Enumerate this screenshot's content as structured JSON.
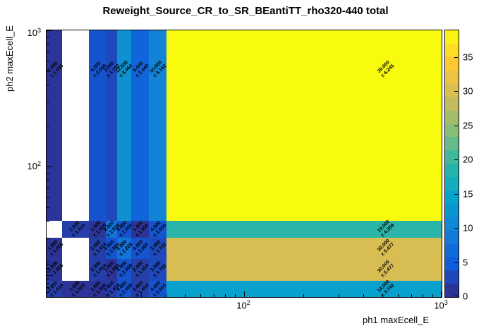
{
  "chart_data": {
    "type": "heatmap",
    "title": "Reweight_Source_CR_to_SR_BEantiTT_rho320-440 total",
    "xlabel": "ph1 maxEcell_E",
    "ylabel": "ph2 maxEcell_E",
    "xscale": "log",
    "yscale": "log",
    "xlim": [
      10,
      1000
    ],
    "ylim": [
      11,
      1000
    ],
    "zlim": [
      0,
      39
    ],
    "grid": false,
    "x_ticks": [
      {
        "value": 100,
        "base": "10",
        "exp": "2"
      },
      {
        "value": 1000,
        "base": "10",
        "exp": "3"
      }
    ],
    "y_ticks": [
      {
        "value": 100,
        "base": "10",
        "exp": "2"
      },
      {
        "value": 1000,
        "base": "10",
        "exp": "3"
      }
    ],
    "colorbar_ticks": [
      0,
      5,
      10,
      15,
      20,
      25,
      30,
      35
    ],
    "palette": [
      [
        0,
        "#352a87"
      ],
      [
        0.125,
        "#0f5cdd"
      ],
      [
        0.25,
        "#1481d6"
      ],
      [
        0.375,
        "#06a4ca"
      ],
      [
        0.5,
        "#2eb7a4"
      ],
      [
        0.625,
        "#87bf77"
      ],
      [
        0.75,
        "#d1bb59"
      ],
      [
        0.875,
        "#fec832"
      ],
      [
        1,
        "#f9fb0e"
      ]
    ],
    "cells": [
      {
        "x1": 10,
        "x2": 12,
        "y1": 40,
        "y2": 1000,
        "v": 1,
        "t": "1.000",
        "e": "± 1.000"
      },
      {
        "x1": 16.4,
        "x2": 20,
        "y1": 40,
        "y2": 1000,
        "v": 4,
        "t": "4.000",
        "e": "± 2.000"
      },
      {
        "x1": 20,
        "x2": 22.7,
        "y1": 40,
        "y2": 1000,
        "v": 3,
        "t": "3.000",
        "e": "± 1.732"
      },
      {
        "x1": 22.7,
        "x2": 26.8,
        "y1": 40,
        "y2": 1000,
        "v": 12,
        "t": "12.000",
        "e": "± 3.464"
      },
      {
        "x1": 26.8,
        "x2": 33,
        "y1": 40,
        "y2": 1000,
        "v": 6,
        "t": "6.000",
        "e": "± 2.449"
      },
      {
        "x1": 33,
        "x2": 40.5,
        "y1": 40,
        "y2": 1000,
        "v": 10,
        "t": "10.000",
        "e": "± 3.162"
      },
      {
        "x1": 40.5,
        "x2": 1000,
        "y1": 40,
        "y2": 1000,
        "v": 39,
        "t": "39.000",
        "e": "± 6.245"
      },
      {
        "x1": 40.5,
        "x2": 1000,
        "y1": 30,
        "y2": 40,
        "v": 19,
        "t": "19.000",
        "e": "± 4.359"
      },
      {
        "x1": 40.5,
        "x2": 1000,
        "y1": 21,
        "y2": 30,
        "v": 30,
        "t": "30.000",
        "e": "± 5.477"
      },
      {
        "x1": 40.5,
        "x2": 1000,
        "y1": 14.5,
        "y2": 21,
        "v": 30,
        "t": "30.000",
        "e": "± 5.477"
      },
      {
        "x1": 40.5,
        "x2": 1000,
        "y1": 11,
        "y2": 14.5,
        "v": 14,
        "t": "14.000",
        "e": "± 3.742"
      },
      {
        "x1": 12,
        "x2": 16.4,
        "y1": 30,
        "y2": 40,
        "v": 2,
        "t": "2.000",
        "e": "± 1.414"
      },
      {
        "x1": 16.4,
        "x2": 20,
        "y1": 30,
        "y2": 40,
        "v": 1,
        "t": "1.000",
        "e": "± 1.000"
      },
      {
        "x1": 20,
        "x2": 22.7,
        "y1": 30,
        "y2": 40,
        "v": 8,
        "t": "8.000",
        "e": "± 2.828"
      },
      {
        "x1": 22.7,
        "x2": 26.8,
        "y1": 30,
        "y2": 40,
        "v": 4,
        "t": "4.000",
        "e": "± 2.000"
      },
      {
        "x1": 26.8,
        "x2": 33,
        "y1": 30,
        "y2": 40,
        "v": 1,
        "t": "1.000",
        "e": "± 1.000"
      },
      {
        "x1": 33,
        "x2": 40.5,
        "y1": 30,
        "y2": 40,
        "v": 4,
        "t": "4.000",
        "e": "± 2.000"
      },
      {
        "x1": 10,
        "x2": 12,
        "y1": 21,
        "y2": 30,
        "v": 1,
        "t": "1.000",
        "e": "± 1.000"
      },
      {
        "x1": 16.4,
        "x2": 20,
        "y1": 21,
        "y2": 30,
        "v": 2,
        "t": "2.000",
        "e": "± 1.414"
      },
      {
        "x1": 20,
        "x2": 22.7,
        "y1": 21,
        "y2": 30,
        "v": 4,
        "t": "4.000",
        "e": "± 2.000"
      },
      {
        "x1": 22.7,
        "x2": 26.8,
        "y1": 21,
        "y2": 30,
        "v": 8,
        "t": "8.000",
        "e": "± 2.828"
      },
      {
        "x1": 26.8,
        "x2": 33,
        "y1": 21,
        "y2": 30,
        "v": 4,
        "t": "4.000",
        "e": "± 2.000"
      },
      {
        "x1": 33,
        "x2": 40.5,
        "y1": 21,
        "y2": 30,
        "v": 3,
        "t": "3.000",
        "e": "± 1.732"
      },
      {
        "x1": 10,
        "x2": 12,
        "y1": 14.5,
        "y2": 21,
        "v": 1,
        "t": "1.000",
        "e": "± 1.000"
      },
      {
        "x1": 16.4,
        "x2": 20,
        "y1": 14.5,
        "y2": 21,
        "v": 2,
        "t": "2.000",
        "e": "± 1.414"
      },
      {
        "x1": 20,
        "x2": 22.7,
        "y1": 14.5,
        "y2": 21,
        "v": 1,
        "t": "1.000",
        "e": "± 1.000"
      },
      {
        "x1": 22.7,
        "x2": 26.8,
        "y1": 14.5,
        "y2": 21,
        "v": 4,
        "t": "4.000",
        "e": "± 2.000"
      },
      {
        "x1": 26.8,
        "x2": 33,
        "y1": 14.5,
        "y2": 21,
        "v": 2,
        "t": "2.000",
        "e": "± 1.414"
      },
      {
        "x1": 33,
        "x2": 40.5,
        "y1": 14.5,
        "y2": 21,
        "v": 3,
        "t": "3.000",
        "e": "± 1.732"
      },
      {
        "x1": 10,
        "x2": 12,
        "y1": 11,
        "y2": 14.5,
        "v": 2,
        "t": "2.000",
        "e": "± 1.414"
      },
      {
        "x1": 12,
        "x2": 16.4,
        "y1": 11,
        "y2": 14.5,
        "v": 1,
        "t": "1.000",
        "e": "± 1.000"
      },
      {
        "x1": 16.4,
        "x2": 20,
        "y1": 11,
        "y2": 14.5,
        "v": 1,
        "t": "1.000",
        "e": "± 1.000"
      },
      {
        "x1": 20,
        "x2": 22.7,
        "y1": 11,
        "y2": 14.5,
        "v": 2,
        "t": "2.000",
        "e": "± 1.414"
      },
      {
        "x1": 22.7,
        "x2": 26.8,
        "y1": 11,
        "y2": 14.5,
        "v": 4,
        "t": "4.000",
        "e": "± 2.000"
      },
      {
        "x1": 26.8,
        "x2": 33,
        "y1": 11,
        "y2": 14.5,
        "v": 2,
        "t": "2.000",
        "e": "± 1.414"
      },
      {
        "x1": 33,
        "x2": 40.5,
        "y1": 11,
        "y2": 14.5,
        "v": 4,
        "t": "4.000",
        "e": "± 2.000"
      }
    ]
  }
}
